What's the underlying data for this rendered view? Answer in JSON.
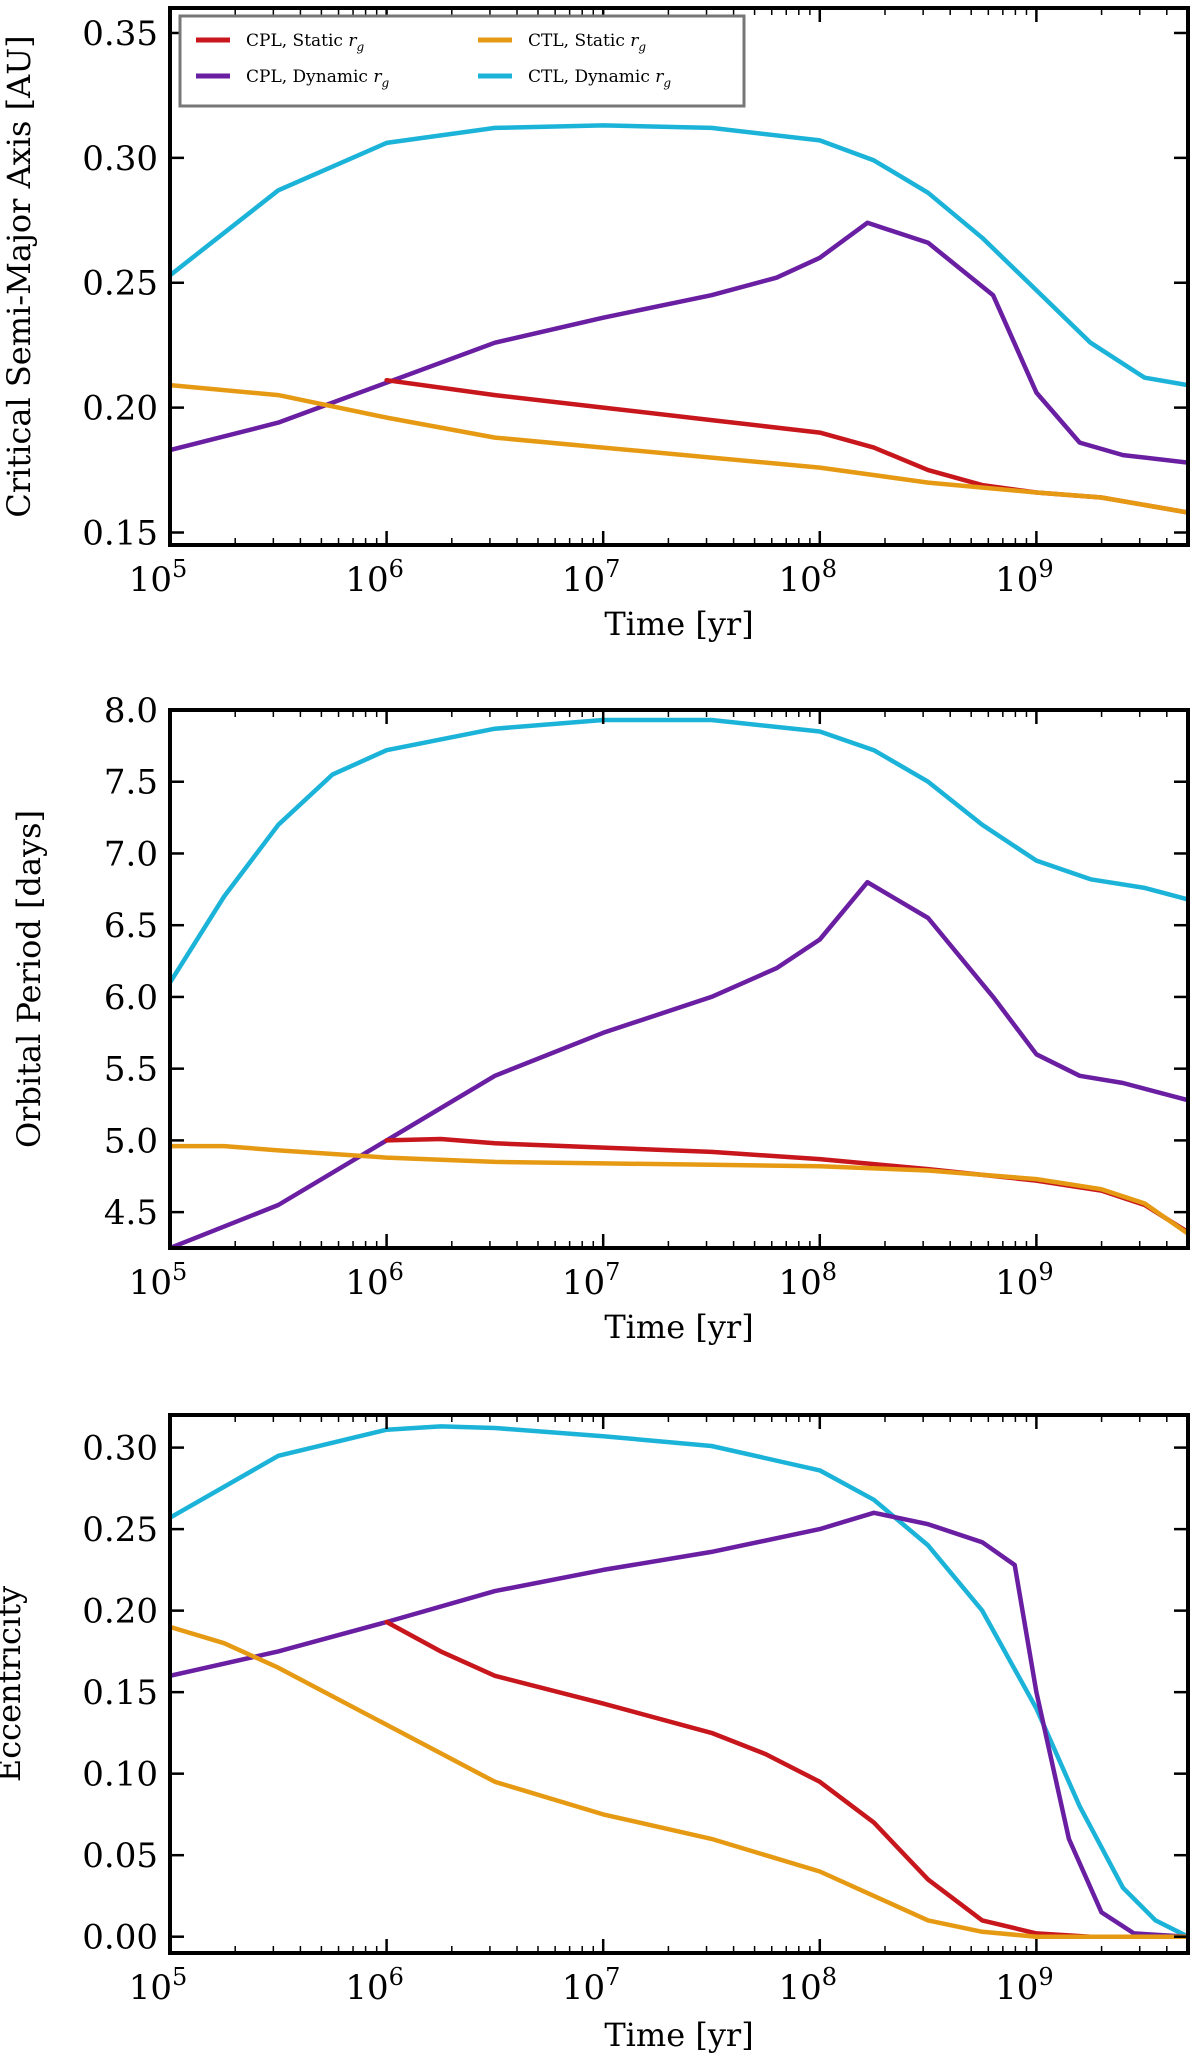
{
  "colors": {
    "CPL, Static": "#c8161d",
    "CPL, Dynamic": "#6a1fa2",
    "CTL, Static": "#e69a13",
    "CTL, Dynamic": "#1cb3d9"
  },
  "legend": [
    {
      "series": "CPL, Static",
      "label": "CPL, Static",
      "symbol": "r",
      "sub": "g"
    },
    {
      "series": "CPL, Dynamic",
      "label": "CPL, Dynamic",
      "symbol": "r",
      "sub": "g"
    },
    {
      "series": "CTL, Static",
      "label": "CTL, Static",
      "symbol": "r",
      "sub": "g"
    },
    {
      "series": "CTL, Dynamic",
      "label": "CTL, Dynamic",
      "symbol": "r",
      "sub": "g"
    }
  ],
  "chart_data": [
    {
      "type": "line",
      "title": "",
      "xlabel": "Time [yr]",
      "ylabel": "Critical Semi-Major Axis [AU]",
      "xscale": "log",
      "xlim_log10": [
        5,
        9.7
      ],
      "ylim": [
        0.145,
        0.36
      ],
      "xticks_log10": [
        5,
        6,
        7,
        8,
        9
      ],
      "yticks": [
        0.15,
        0.2,
        0.25,
        0.3,
        0.35
      ],
      "ytick_labels": [
        "0.15",
        "0.20",
        "0.25",
        "0.30",
        "0.35"
      ],
      "legend_position": "upper-left",
      "series": [
        {
          "name": "CTL, Dynamic",
          "x_log10": [
            5.0,
            5.5,
            6.0,
            6.5,
            7.0,
            7.5,
            8.0,
            8.25,
            8.5,
            8.75,
            9.0,
            9.25,
            9.5,
            9.7
          ],
          "values": [
            0.253,
            0.287,
            0.306,
            0.312,
            0.313,
            0.312,
            0.307,
            0.299,
            0.286,
            0.268,
            0.247,
            0.226,
            0.212,
            0.209
          ]
        },
        {
          "name": "CPL, Dynamic",
          "x_log10": [
            5.0,
            5.5,
            6.0,
            6.5,
            7.0,
            7.5,
            7.8,
            8.0,
            8.22,
            8.5,
            8.8,
            9.0,
            9.2,
            9.4,
            9.7
          ],
          "values": [
            0.183,
            0.194,
            0.21,
            0.226,
            0.236,
            0.245,
            0.252,
            0.26,
            0.274,
            0.266,
            0.245,
            0.206,
            0.186,
            0.181,
            0.178
          ]
        },
        {
          "name": "CPL, Static",
          "x_log10": [
            6.0,
            6.5,
            7.0,
            7.5,
            8.0,
            8.25,
            8.5,
            8.75,
            9.0,
            9.3,
            9.7
          ],
          "values": [
            0.211,
            0.205,
            0.2,
            0.195,
            0.19,
            0.184,
            0.175,
            0.169,
            0.166,
            0.164,
            0.158
          ]
        },
        {
          "name": "CTL, Static",
          "x_log10": [
            5.0,
            5.5,
            6.0,
            6.5,
            7.0,
            7.5,
            8.0,
            8.5,
            9.0,
            9.3,
            9.7
          ],
          "values": [
            0.209,
            0.205,
            0.196,
            0.188,
            0.184,
            0.18,
            0.176,
            0.17,
            0.166,
            0.164,
            0.158
          ]
        }
      ]
    },
    {
      "type": "line",
      "title": "",
      "xlabel": "Time [yr]",
      "ylabel": "Orbital Period [days]",
      "xscale": "log",
      "xlim_log10": [
        5,
        9.7
      ],
      "ylim": [
        4.25,
        8.0
      ],
      "xticks_log10": [
        5,
        6,
        7,
        8,
        9
      ],
      "yticks": [
        4.5,
        5.0,
        5.5,
        6.0,
        6.5,
        7.0,
        7.5,
        8.0
      ],
      "ytick_labels": [
        "4.5",
        "5.0",
        "5.5",
        "6.0",
        "6.5",
        "7.0",
        "7.5",
        "8.0"
      ],
      "series": [
        {
          "name": "CTL, Dynamic",
          "x_log10": [
            5.0,
            5.25,
            5.5,
            5.75,
            6.0,
            6.5,
            7.0,
            7.5,
            8.0,
            8.25,
            8.5,
            8.75,
            9.0,
            9.25,
            9.5,
            9.7
          ],
          "values": [
            6.1,
            6.7,
            7.2,
            7.55,
            7.72,
            7.87,
            7.93,
            7.93,
            7.85,
            7.72,
            7.5,
            7.2,
            6.95,
            6.82,
            6.76,
            6.68
          ]
        },
        {
          "name": "CPL, Dynamic",
          "x_log10": [
            5.0,
            5.5,
            6.0,
            6.5,
            7.0,
            7.5,
            7.8,
            8.0,
            8.22,
            8.5,
            8.8,
            9.0,
            9.2,
            9.4,
            9.7
          ],
          "values": [
            4.25,
            4.55,
            5.0,
            5.45,
            5.75,
            6.0,
            6.2,
            6.4,
            6.8,
            6.55,
            6.0,
            5.6,
            5.45,
            5.4,
            5.28
          ]
        },
        {
          "name": "CPL, Static",
          "x_log10": [
            6.0,
            6.25,
            6.5,
            7.0,
            7.5,
            8.0,
            8.5,
            9.0,
            9.3,
            9.5,
            9.7
          ],
          "values": [
            5.0,
            5.01,
            4.98,
            4.95,
            4.92,
            4.87,
            4.8,
            4.72,
            4.65,
            4.55,
            4.36
          ]
        },
        {
          "name": "CTL, Static",
          "x_log10": [
            5.0,
            5.25,
            5.5,
            6.0,
            6.5,
            7.0,
            7.5,
            8.0,
            8.5,
            9.0,
            9.3,
            9.5,
            9.7
          ],
          "values": [
            4.96,
            4.96,
            4.93,
            4.88,
            4.85,
            4.84,
            4.83,
            4.82,
            4.79,
            4.73,
            4.66,
            4.56,
            4.35
          ]
        }
      ]
    },
    {
      "type": "line",
      "title": "",
      "xlabel": "Time [yr]",
      "ylabel": "Eccentricity",
      "xscale": "log",
      "xlim_log10": [
        5,
        9.7
      ],
      "ylim": [
        -0.01,
        0.32
      ],
      "xticks_log10": [
        5,
        6,
        7,
        8,
        9
      ],
      "yticks": [
        0.0,
        0.05,
        0.1,
        0.15,
        0.2,
        0.25,
        0.3
      ],
      "ytick_labels": [
        "0.00",
        "0.05",
        "0.10",
        "0.15",
        "0.20",
        "0.25",
        "0.30"
      ],
      "series": [
        {
          "name": "CTL, Dynamic",
          "x_log10": [
            5.0,
            5.5,
            6.0,
            6.25,
            6.5,
            7.0,
            7.5,
            8.0,
            8.25,
            8.5,
            8.75,
            9.0,
            9.2,
            9.4,
            9.55,
            9.7
          ],
          "values": [
            0.257,
            0.295,
            0.311,
            0.313,
            0.312,
            0.307,
            0.301,
            0.286,
            0.268,
            0.24,
            0.2,
            0.14,
            0.08,
            0.03,
            0.01,
            0.0
          ]
        },
        {
          "name": "CPL, Dynamic",
          "x_log10": [
            5.0,
            5.5,
            6.0,
            6.5,
            7.0,
            7.5,
            8.0,
            8.25,
            8.5,
            8.75,
            8.9,
            9.0,
            9.15,
            9.3,
            9.45,
            9.7
          ],
          "values": [
            0.16,
            0.175,
            0.193,
            0.212,
            0.225,
            0.236,
            0.25,
            0.26,
            0.253,
            0.242,
            0.228,
            0.15,
            0.06,
            0.015,
            0.002,
            0.0
          ]
        },
        {
          "name": "CPL, Static",
          "x_log10": [
            6.0,
            6.25,
            6.5,
            7.0,
            7.5,
            7.75,
            8.0,
            8.25,
            8.5,
            8.75,
            9.0,
            9.25,
            9.7
          ],
          "values": [
            0.193,
            0.175,
            0.16,
            0.143,
            0.125,
            0.112,
            0.095,
            0.07,
            0.035,
            0.01,
            0.002,
            0.0,
            0.0
          ]
        },
        {
          "name": "CTL, Static",
          "x_log10": [
            5.0,
            5.25,
            5.5,
            6.0,
            6.5,
            7.0,
            7.5,
            7.75,
            8.0,
            8.25,
            8.5,
            8.75,
            9.0,
            9.7
          ],
          "values": [
            0.19,
            0.18,
            0.165,
            0.13,
            0.095,
            0.075,
            0.06,
            0.05,
            0.04,
            0.025,
            0.01,
            0.003,
            0.0,
            0.0
          ]
        }
      ]
    }
  ]
}
